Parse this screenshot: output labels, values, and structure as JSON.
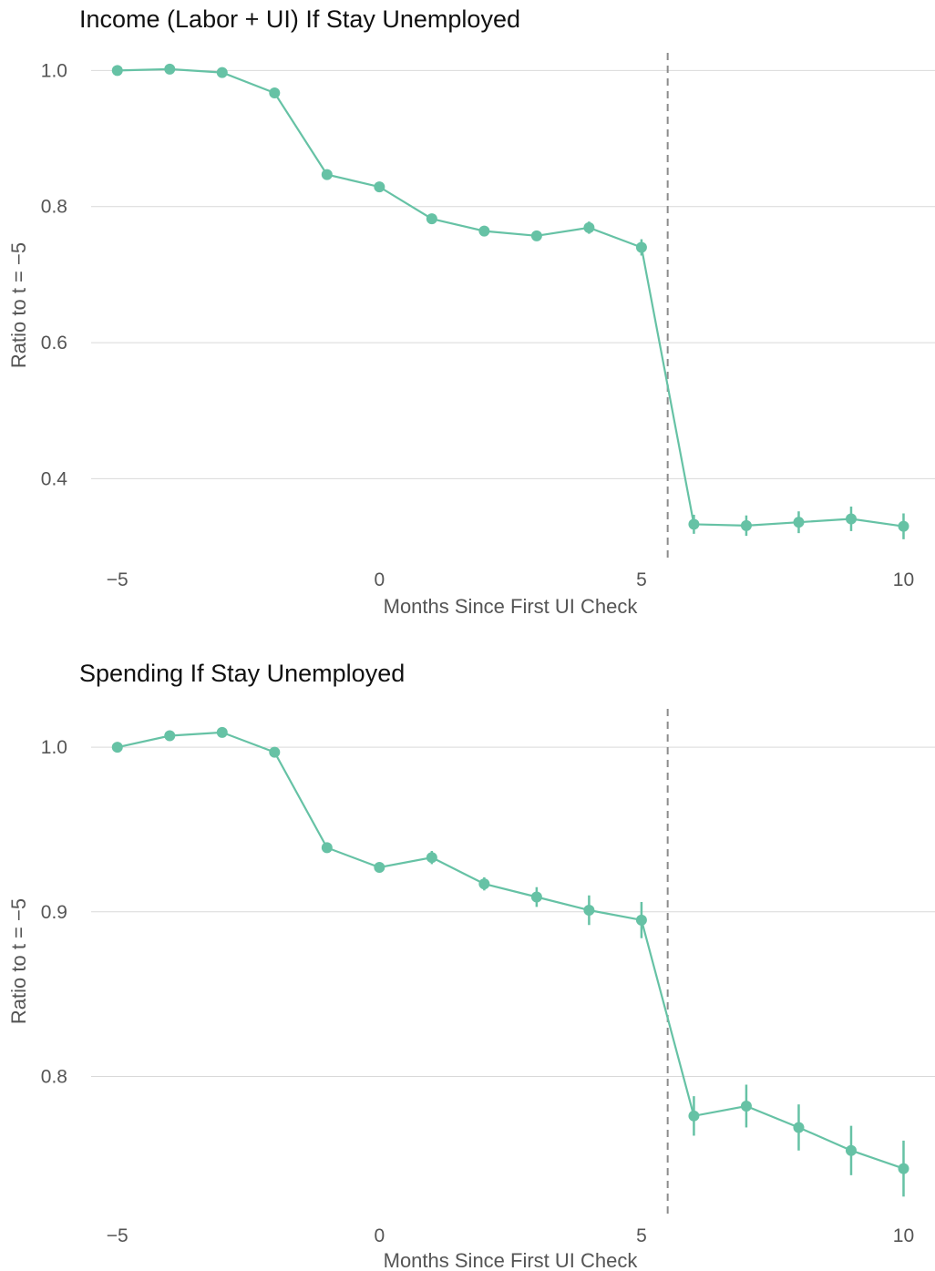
{
  "chart_data": [
    {
      "type": "line",
      "title": "Income (Labor + UI) If Stay Unemployed",
      "xlabel": "Months Since First UI Check",
      "ylabel": "Ratio to t = −5",
      "xlim": [
        -5.5,
        10.6
      ],
      "ylim": [
        0.28,
        1.03
      ],
      "x_ticks": [
        -5,
        0,
        5,
        10
      ],
      "x_tick_labels": [
        "−5",
        "0",
        "5",
        "10"
      ],
      "y_ticks": [
        0.4,
        0.6,
        0.8,
        1.0
      ],
      "y_tick_labels": [
        "0.4",
        "0.6",
        "0.8",
        "1.0"
      ],
      "grid": "horizontal",
      "vline_x": 5.5,
      "color": "#66c2a5",
      "x": [
        -5,
        -4,
        -3,
        -2,
        -1,
        0,
        1,
        2,
        3,
        4,
        5,
        6,
        7,
        8,
        9,
        10
      ],
      "y": [
        1.0,
        1.002,
        0.997,
        0.967,
        0.847,
        0.829,
        0.782,
        0.764,
        0.757,
        0.769,
        0.74,
        0.333,
        0.331,
        0.336,
        0.341,
        0.33
      ],
      "error": [
        0.002,
        0.002,
        0.002,
        0.003,
        0.004,
        0.004,
        0.004,
        0.005,
        0.006,
        0.009,
        0.012,
        0.014,
        0.015,
        0.016,
        0.018,
        0.019
      ]
    },
    {
      "type": "line",
      "title": "Spending If Stay Unemployed",
      "xlabel": "Months Since First UI Check",
      "ylabel": "Ratio to t = −5",
      "xlim": [
        -5.5,
        10.6
      ],
      "ylim": [
        0.715,
        1.025
      ],
      "x_ticks": [
        -5,
        0,
        5,
        10
      ],
      "x_tick_labels": [
        "−5",
        "0",
        "5",
        "10"
      ],
      "y_ticks": [
        0.8,
        0.9,
        1.0
      ],
      "y_tick_labels": [
        "0.8",
        "0.9",
        "1.0"
      ],
      "grid": "horizontal",
      "vline_x": 5.5,
      "color": "#66c2a5",
      "x": [
        -5,
        -4,
        -3,
        -2,
        -1,
        0,
        1,
        2,
        3,
        4,
        5,
        6,
        7,
        8,
        9,
        10
      ],
      "y": [
        1.0,
        1.007,
        1.009,
        0.997,
        0.939,
        0.927,
        0.933,
        0.917,
        0.909,
        0.901,
        0.895,
        0.776,
        0.782,
        0.769,
        0.755,
        0.744
      ],
      "error": [
        0.001,
        0.002,
        0.002,
        0.002,
        0.003,
        0.003,
        0.004,
        0.004,
        0.006,
        0.009,
        0.011,
        0.012,
        0.013,
        0.014,
        0.015,
        0.017
      ]
    }
  ]
}
